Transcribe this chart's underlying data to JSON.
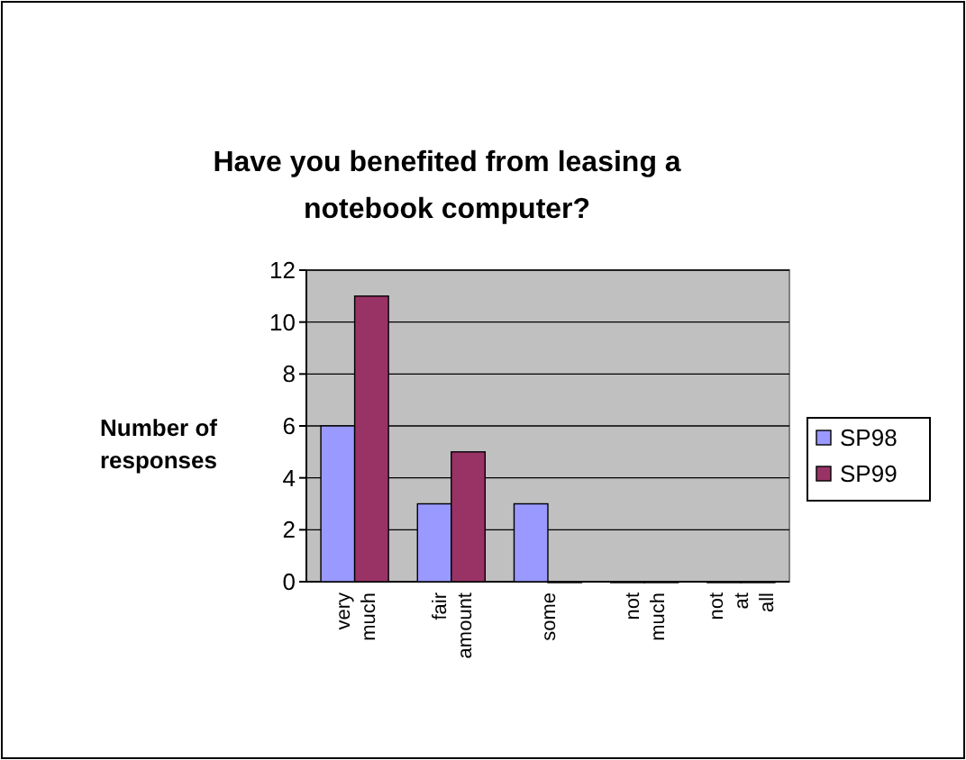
{
  "chart_data": {
    "type": "bar",
    "title": "Have you benefited from leasing a notebook computer?",
    "ylabel": "Number of responses",
    "categories": [
      "very much",
      "fair amount",
      "some",
      "not much",
      "not at all"
    ],
    "series": [
      {
        "name": "SP98",
        "color": "#9999ff",
        "values": [
          6,
          3,
          3,
          0,
          0
        ]
      },
      {
        "name": "SP99",
        "color": "#993366",
        "values": [
          11,
          5,
          0,
          0,
          0
        ]
      }
    ],
    "ylim": [
      0,
      12
    ],
    "yticks": [
      0,
      2,
      4,
      6,
      8,
      10,
      12
    ],
    "grid": "y",
    "legend": "right"
  }
}
